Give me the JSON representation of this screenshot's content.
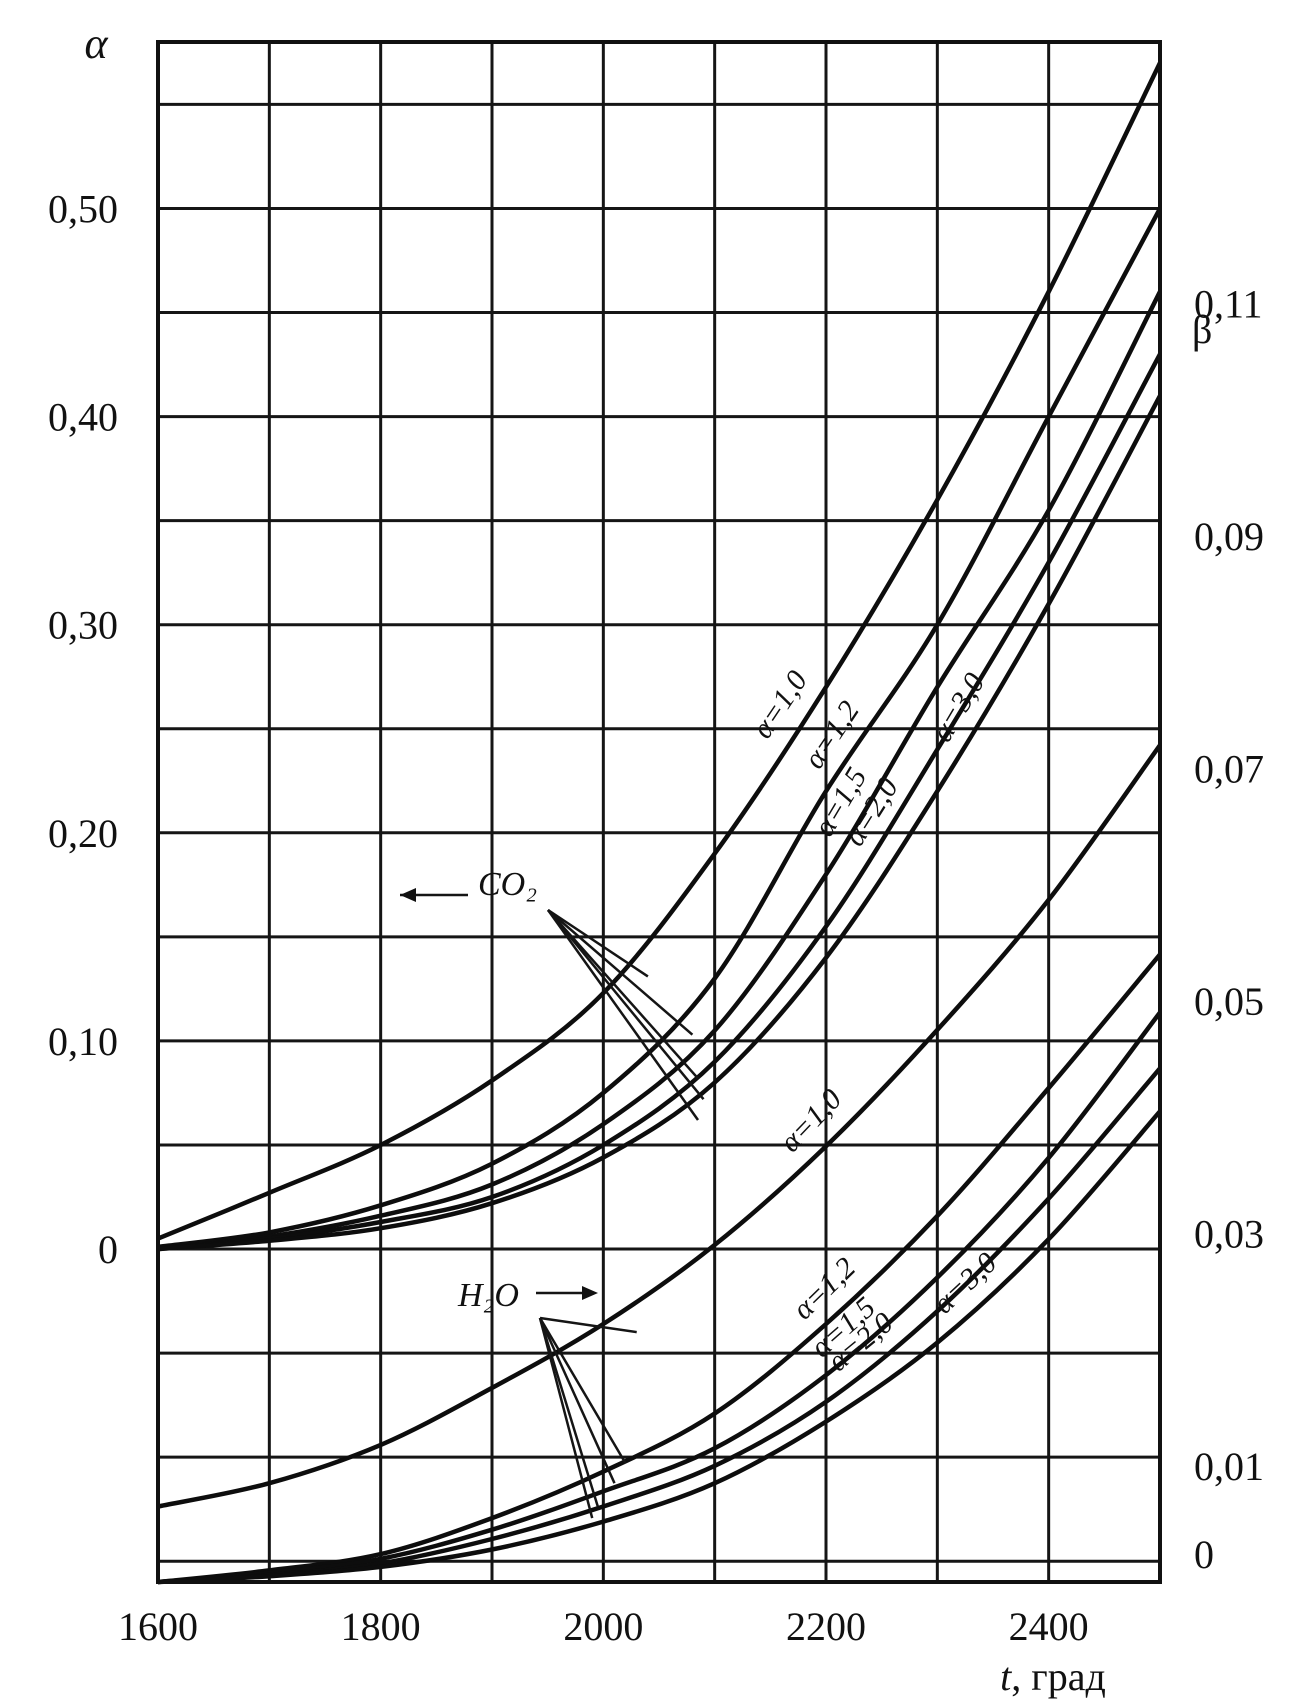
{
  "chart_data": {
    "type": "line",
    "title": "",
    "xlabel": "t, град",
    "xlabel_var": "t",
    "xlabel_unit": ", град",
    "ylabel_left": "α",
    "ylabel_right": "β",
    "xlim": [
      1600,
      2500
    ],
    "ylim_left": [
      -0.16,
      0.58
    ],
    "ylim_right": [
      0.0,
      0.1325
    ],
    "x_ticks": [
      {
        "value": 1600,
        "label": "1600"
      },
      {
        "value": 1800,
        "label": "1800"
      },
      {
        "value": 2000,
        "label": "2000"
      },
      {
        "value": 2200,
        "label": "2200"
      },
      {
        "value": 2400,
        "label": "2400"
      }
    ],
    "y_left_ticks": [
      {
        "value": 0.5,
        "label": "0,50"
      },
      {
        "value": 0.4,
        "label": "0,40"
      },
      {
        "value": 0.3,
        "label": "0,30"
      },
      {
        "value": 0.2,
        "label": "0,20"
      },
      {
        "value": 0.1,
        "label": "0,10"
      },
      {
        "value": 0.0,
        "label": "0"
      }
    ],
    "y_right_ticks": [
      {
        "value": 0.11,
        "label": "0,11"
      },
      {
        "value": 0.09,
        "label": "0,09"
      },
      {
        "value": 0.07,
        "label": "0,07"
      },
      {
        "value": 0.05,
        "label": "0,05"
      },
      {
        "value": 0.03,
        "label": "0,03"
      },
      {
        "value": 0.01,
        "label": "0,01"
      },
      {
        "value": 0.0,
        "label": "0"
      }
    ],
    "grid": true,
    "grid_x_step": 100,
    "grid_y_left_step": 0.05,
    "groups": [
      {
        "name": "CO₂",
        "axis": "left",
        "arrow_direction": "left",
        "series": [
          {
            "name": "α=1,0",
            "x": [
              1600,
              1700,
              1800,
              1900,
              2000,
              2100,
              2200,
              2300,
              2400,
              2500
            ],
            "y": [
              0.005,
              0.027,
              0.05,
              0.081,
              0.123,
              0.19,
              0.27,
              0.36,
              0.46,
              0.57
            ]
          },
          {
            "name": "α=1,2",
            "x": [
              1600,
              1700,
              1800,
              1900,
              2000,
              2100,
              2200,
              2300,
              2400,
              2500
            ],
            "y": [
              0.001,
              0.008,
              0.021,
              0.041,
              0.075,
              0.13,
              0.22,
              0.3,
              0.4,
              0.5
            ]
          },
          {
            "name": "α=1,5",
            "x": [
              1600,
              1700,
              1800,
              1900,
              2000,
              2100,
              2200,
              2300,
              2400,
              2500
            ],
            "y": [
              0.0,
              0.006,
              0.016,
              0.031,
              0.06,
              0.105,
              0.18,
              0.27,
              0.355,
              0.46
            ]
          },
          {
            "name": "α=2,0",
            "x": [
              1600,
              1700,
              1800,
              1900,
              2000,
              2100,
              2200,
              2300,
              2400,
              2500
            ],
            "y": [
              0.0,
              0.005,
              0.013,
              0.025,
              0.05,
              0.09,
              0.155,
              0.24,
              0.33,
              0.43
            ]
          },
          {
            "name": "α=3,0",
            "x": [
              1600,
              1700,
              1800,
              1900,
              2000,
              2100,
              2200,
              2300,
              2400,
              2500
            ],
            "y": [
              0.0,
              0.004,
              0.01,
              0.022,
              0.044,
              0.08,
              0.14,
              0.22,
              0.31,
              0.41
            ]
          }
        ]
      },
      {
        "name": "H₂O",
        "axis": "right",
        "arrow_direction": "right",
        "series": [
          {
            "name": "α=1,0",
            "x": [
              1600,
              1700,
              1800,
              1900,
              2000,
              2100,
              2200,
              2300,
              2400,
              2500
            ],
            "y": [
              0.0065,
              0.0085,
              0.0118,
              0.0167,
              0.0222,
              0.029,
              0.0375,
              0.0475,
              0.0587,
              0.072
            ]
          },
          {
            "name": "α=1,2",
            "x": [
              1600,
              1700,
              1800,
              1900,
              2000,
              2100,
              2200,
              2300,
              2400,
              2500
            ],
            "y": [
              0.0,
              0.001,
              0.0024,
              0.0055,
              0.0095,
              0.0145,
              0.0222,
              0.0315,
              0.0425,
              0.054
            ]
          },
          {
            "name": "α=1,5",
            "x": [
              1600,
              1700,
              1800,
              1900,
              2000,
              2100,
              2200,
              2300,
              2400,
              2500
            ],
            "y": [
              0.0,
              0.0008,
              0.002,
              0.0045,
              0.0078,
              0.0115,
              0.0178,
              0.0262,
              0.0365,
              0.049
            ]
          },
          {
            "name": "α=2,0",
            "x": [
              1600,
              1700,
              1800,
              1900,
              2000,
              2100,
              2200,
              2300,
              2400,
              2500
            ],
            "y": [
              0.0,
              0.0006,
              0.0016,
              0.0037,
              0.0065,
              0.01,
              0.0155,
              0.0233,
              0.033,
              0.0442
            ]
          },
          {
            "name": "α=3,0",
            "x": [
              1600,
              1700,
              1800,
              1900,
              2000,
              2100,
              2200,
              2300,
              2400,
              2500
            ],
            "y": [
              0.0,
              0.0005,
              0.0013,
              0.0028,
              0.0052,
              0.0085,
              0.0138,
              0.0206,
              0.0295,
              0.0405
            ]
          }
        ]
      }
    ]
  }
}
